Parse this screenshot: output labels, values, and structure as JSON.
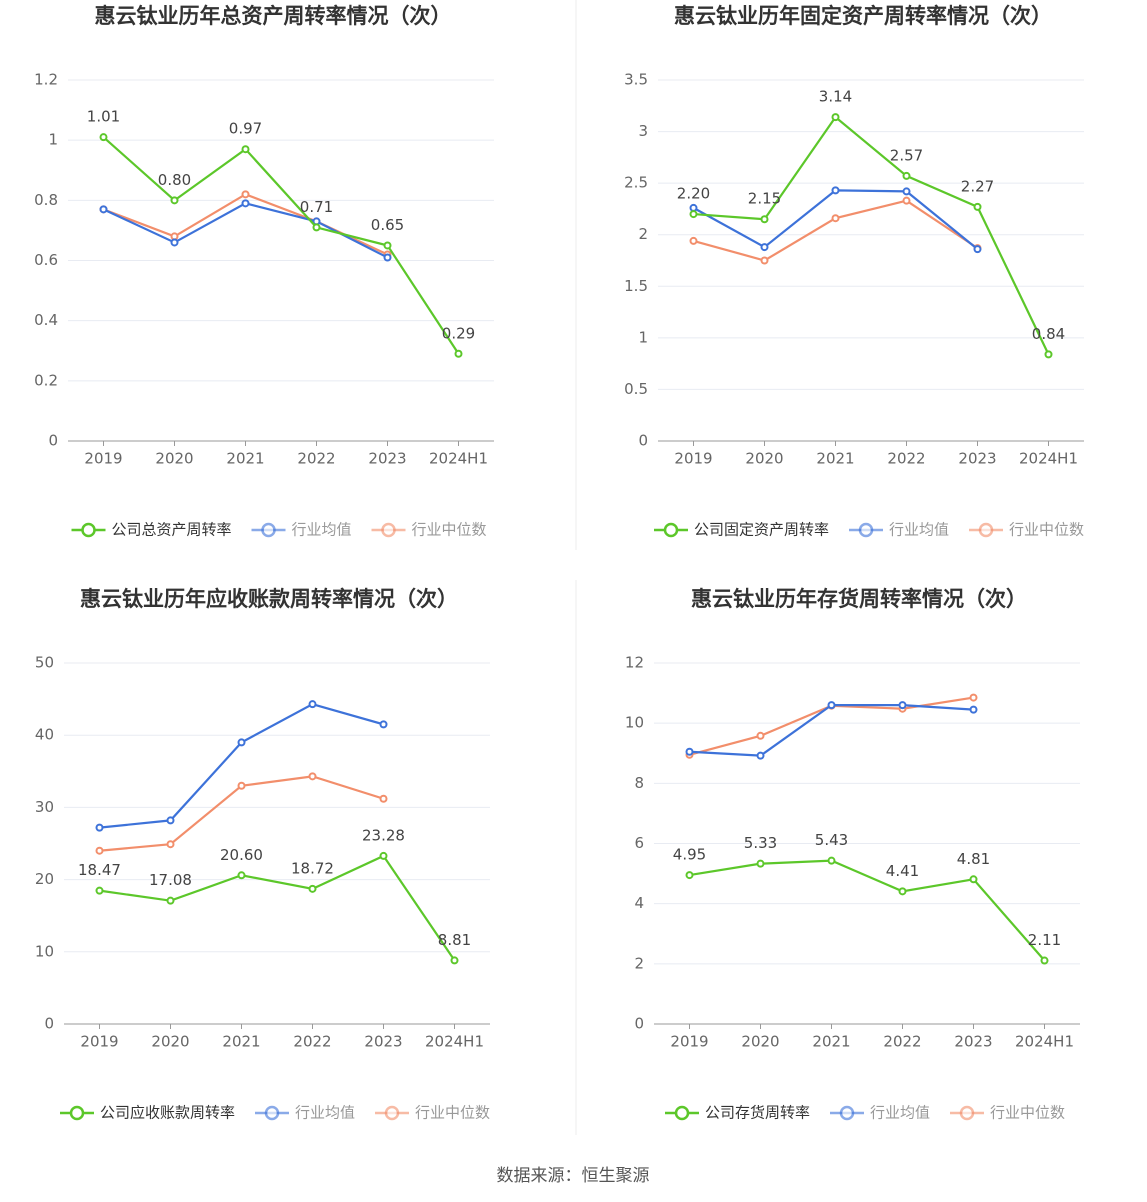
{
  "chart_data": [
    {
      "type": "line",
      "title": "惠云钛业历年总资产周转率情况（次）",
      "categories": [
        "2019",
        "2020",
        "2021",
        "2022",
        "2023",
        "2024H1"
      ],
      "ylim": [
        0,
        1.2
      ],
      "yticks": [
        0,
        0.2,
        0.4,
        0.6,
        0.8,
        1,
        1.2
      ],
      "grid": true,
      "series": [
        {
          "name": "公司总资产周转率",
          "color": "#5cc72a",
          "values": [
            1.01,
            0.8,
            0.97,
            0.71,
            0.65,
            0.29
          ],
          "value_labels": [
            "1.01",
            "0.80",
            "0.97",
            "0.71",
            "0.65",
            "0.29"
          ]
        },
        {
          "name": "行业均值",
          "color": "#3d72d9",
          "values": [
            0.77,
            0.66,
            0.79,
            0.73,
            0.61,
            null
          ]
        },
        {
          "name": "行业中位数",
          "color": "#f28e6b",
          "values": [
            0.77,
            0.68,
            0.82,
            0.73,
            0.62,
            null
          ]
        }
      ]
    },
    {
      "type": "line",
      "title": "惠云钛业历年固定资产周转率情况（次）",
      "categories": [
        "2019",
        "2020",
        "2021",
        "2022",
        "2023",
        "2024H1"
      ],
      "ylim": [
        0,
        3.5
      ],
      "yticks": [
        0,
        0.5,
        1,
        1.5,
        2,
        2.5,
        3,
        3.5
      ],
      "grid": true,
      "series": [
        {
          "name": "公司固定资产周转率",
          "color": "#5cc72a",
          "values": [
            2.2,
            2.15,
            3.14,
            2.57,
            2.27,
            0.84
          ],
          "value_labels": [
            "2.20",
            "2.15",
            "3.14",
            "2.57",
            "2.27",
            "0.84"
          ]
        },
        {
          "name": "行业均值",
          "color": "#3d72d9",
          "values": [
            2.26,
            1.88,
            2.43,
            2.42,
            1.86,
            null
          ]
        },
        {
          "name": "行业中位数",
          "color": "#f28e6b",
          "values": [
            1.94,
            1.75,
            2.16,
            2.33,
            1.87,
            null
          ]
        }
      ]
    },
    {
      "type": "line",
      "title": "惠云钛业历年应收账款周转率情况（次）",
      "categories": [
        "2019",
        "2020",
        "2021",
        "2022",
        "2023",
        "2024H1"
      ],
      "ylim": [
        0,
        50
      ],
      "yticks": [
        0,
        10,
        20,
        30,
        40,
        50
      ],
      "grid": true,
      "series": [
        {
          "name": "公司应收账款周转率",
          "color": "#5cc72a",
          "values": [
            18.47,
            17.08,
            20.6,
            18.72,
            23.28,
            8.81
          ],
          "value_labels": [
            "18.47",
            "17.08",
            "20.60",
            "18.72",
            "23.28",
            "8.81"
          ]
        },
        {
          "name": "行业均值",
          "color": "#3d72d9",
          "values": [
            27.2,
            28.2,
            39.0,
            44.3,
            41.5,
            null
          ]
        },
        {
          "name": "行业中位数",
          "color": "#f28e6b",
          "values": [
            24.0,
            24.9,
            33.0,
            34.3,
            31.2,
            null
          ]
        }
      ]
    },
    {
      "type": "line",
      "title": "惠云钛业历年存货周转率情况（次）",
      "categories": [
        "2019",
        "2020",
        "2021",
        "2022",
        "2023",
        "2024H1"
      ],
      "ylim": [
        0,
        12
      ],
      "yticks": [
        0,
        2,
        4,
        6,
        8,
        10,
        12
      ],
      "grid": true,
      "series": [
        {
          "name": "公司存货周转率",
          "color": "#5cc72a",
          "values": [
            4.95,
            5.33,
            5.43,
            4.41,
            4.81,
            2.11
          ],
          "value_labels": [
            "4.95",
            "5.33",
            "5.43",
            "4.41",
            "4.81",
            "2.11"
          ]
        },
        {
          "name": "行业均值",
          "color": "#3d72d9",
          "values": [
            9.05,
            8.92,
            10.6,
            10.6,
            10.45,
            null
          ]
        },
        {
          "name": "行业中位数",
          "color": "#f28e6b",
          "values": [
            8.95,
            9.58,
            10.58,
            10.48,
            10.85,
            null
          ]
        }
      ]
    }
  ],
  "source": "数据来源：恒生聚源"
}
